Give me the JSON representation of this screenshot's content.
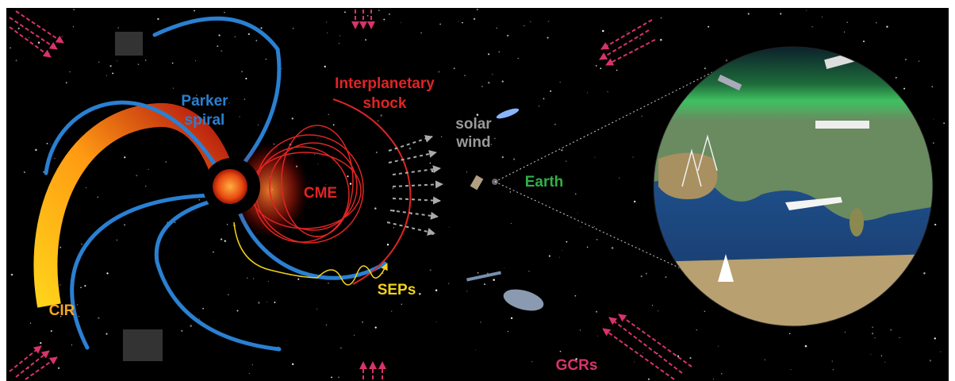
{
  "labels": {
    "parker_spiral": [
      "Parker",
      "spiral"
    ],
    "interplanetary_shock": [
      "Interplanetary",
      "shock"
    ],
    "solar_wind": [
      "solar",
      "wind"
    ],
    "cme": "CME",
    "earth": "Earth",
    "seps": "SEPs",
    "cir": "CIR",
    "gcrs": "GCRs"
  }
}
